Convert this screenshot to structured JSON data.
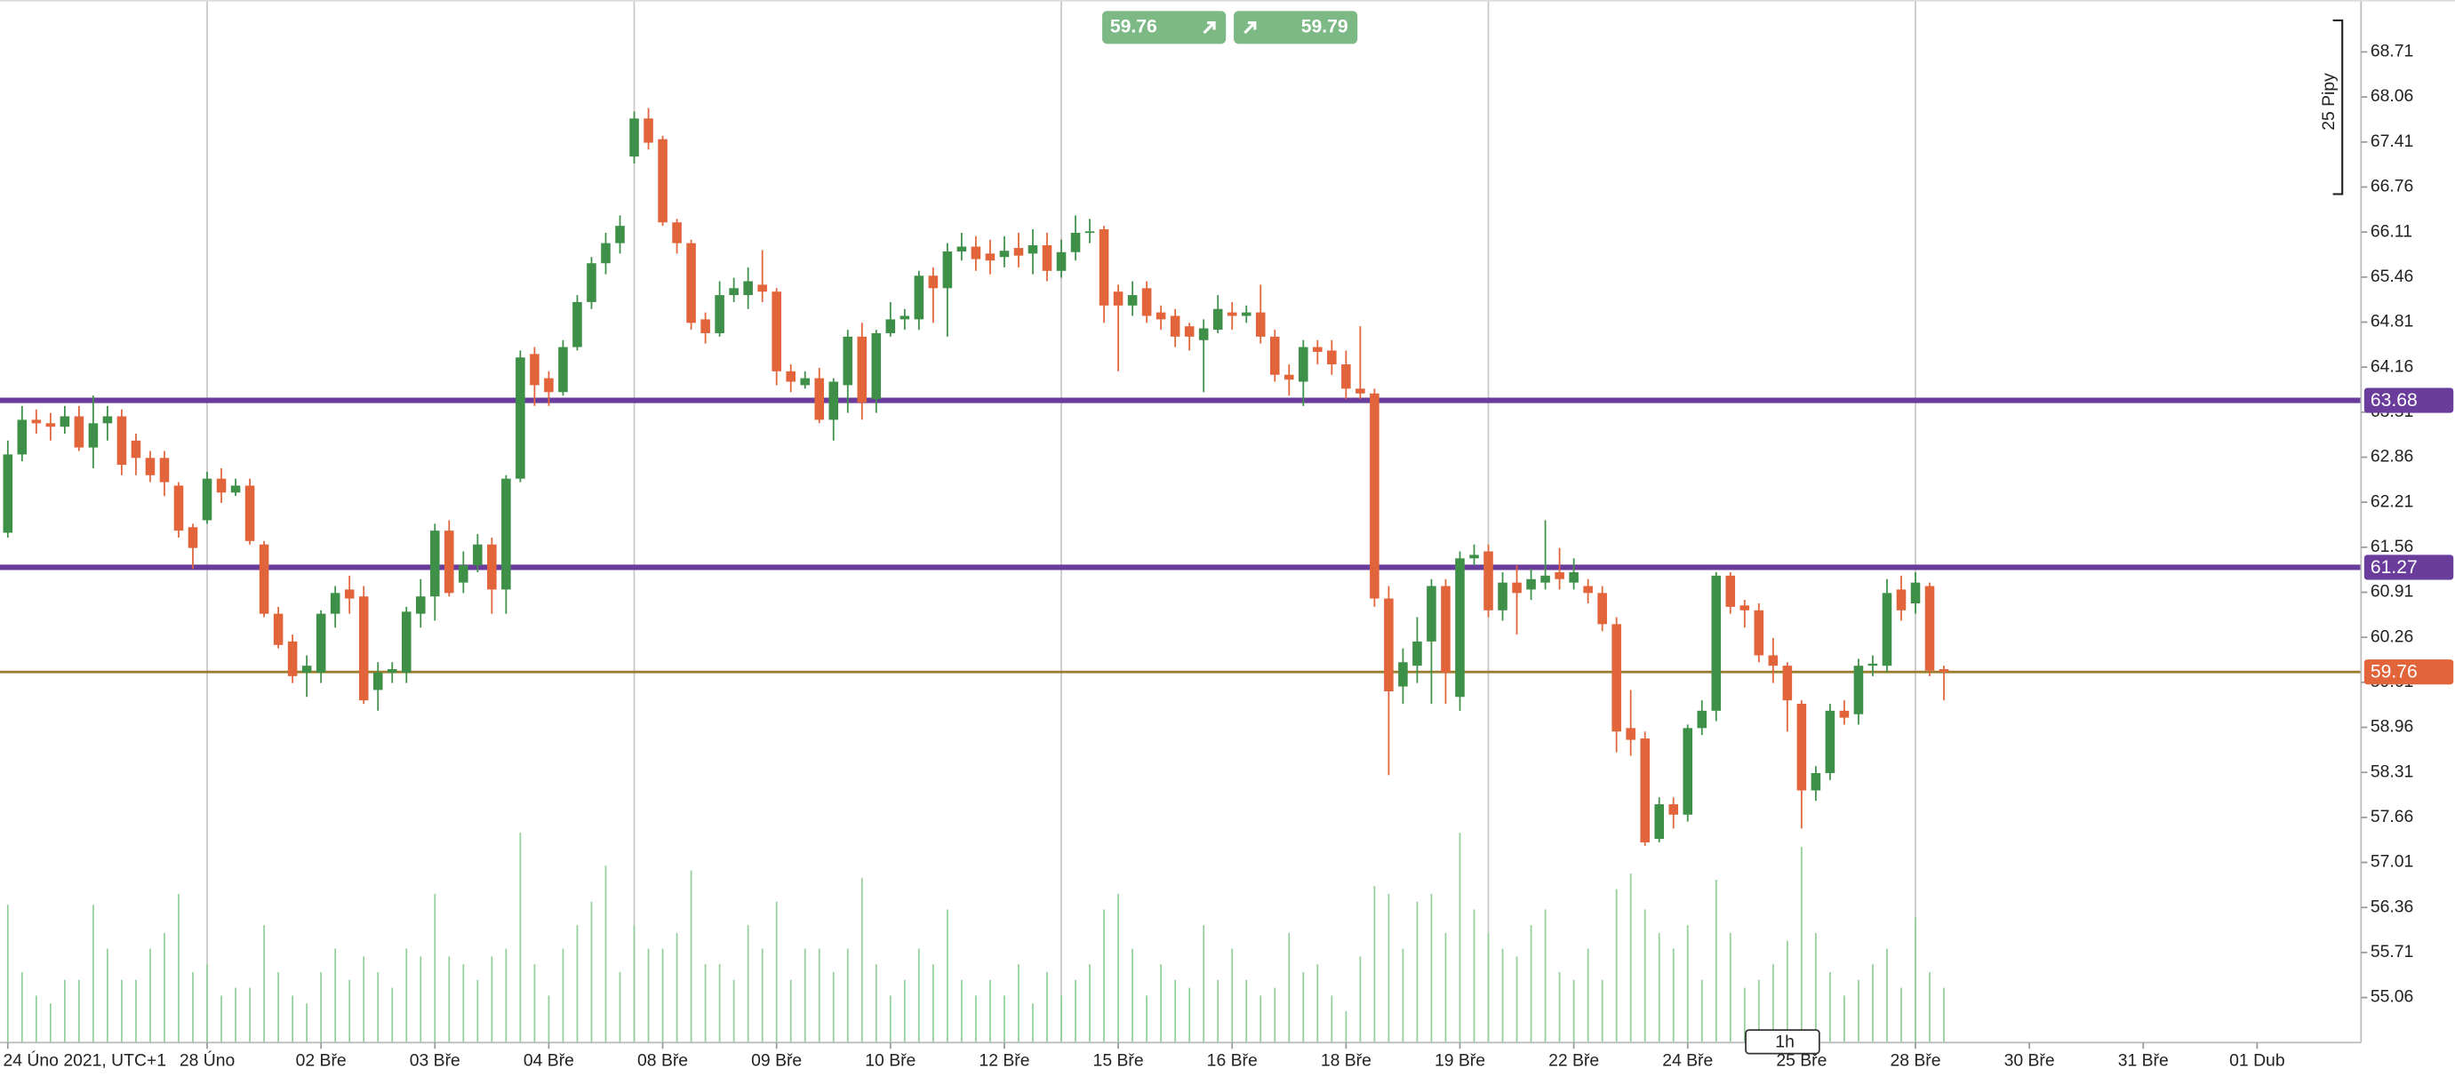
{
  "chart_data": {
    "type": "candlestick",
    "candle_fields": [
      "open",
      "high",
      "low",
      "close"
    ],
    "up_color": "#3e9049",
    "down_color": "#e2643a",
    "volume_color": "#93cf9c",
    "xlim": [
      -0.55,
      165.3
    ],
    "ylim": [
      54.41,
      69.46
    ],
    "yticks": [
      55.06,
      55.71,
      56.36,
      57.01,
      57.66,
      58.31,
      58.96,
      59.61,
      60.26,
      60.91,
      61.56,
      62.21,
      62.86,
      63.51,
      64.16,
      64.81,
      65.46,
      66.11,
      66.76,
      67.41,
      68.06,
      68.71
    ],
    "xticks": [
      {
        "value": 0,
        "label": "24 Úno 2021, UTC+1"
      },
      {
        "value": 14,
        "label": "28 Úno"
      },
      {
        "value": 22,
        "label": "02 Bře"
      },
      {
        "value": 30,
        "label": "03 Bře"
      },
      {
        "value": 38,
        "label": "04 Bře"
      },
      {
        "value": 46,
        "label": "08 Bře"
      },
      {
        "value": 54,
        "label": "09 Bře"
      },
      {
        "value": 62,
        "label": "10 Bře"
      },
      {
        "value": 70,
        "label": "12 Bře"
      },
      {
        "value": 78,
        "label": "15 Bře"
      },
      {
        "value": 86,
        "label": "16 Bře"
      },
      {
        "value": 94,
        "label": "18 Bře"
      },
      {
        "value": 102,
        "label": "19 Bře"
      },
      {
        "value": 110,
        "label": "22 Bře"
      },
      {
        "value": 118,
        "label": "24 Bře"
      },
      {
        "value": 126,
        "label": "25 Bře"
      },
      {
        "value": 134,
        "label": "28 Bře"
      },
      {
        "value": 142,
        "label": "30 Bře"
      },
      {
        "value": 150,
        "label": "31 Bře"
      },
      {
        "value": 158,
        "label": "01 Dub"
      }
    ],
    "xgrid": [
      14,
      44,
      74,
      104,
      134
    ],
    "levels": [
      {
        "value": 63.68,
        "color": "#6a3c9c"
      },
      {
        "value": 61.27,
        "color": "#6a3c9c"
      },
      {
        "value": 59.76,
        "color": "#e2643a",
        "line_color": "#9a7d2e"
      }
    ],
    "trade_buttons": {
      "sell": 59.76,
      "buy": 59.79,
      "color": "#7db985"
    },
    "pip_scale": "25 Pipy",
    "timeframe": "1h",
    "candles": [
      [
        61.77,
        63.1,
        61.7,
        62.9
      ],
      [
        62.9,
        63.6,
        62.8,
        63.4
      ],
      [
        63.4,
        63.55,
        63.2,
        63.35
      ],
      [
        63.35,
        63.5,
        63.1,
        63.3
      ],
      [
        63.3,
        63.6,
        63.2,
        63.45
      ],
      [
        63.45,
        63.6,
        62.95,
        63.0
      ],
      [
        63.0,
        63.75,
        62.7,
        63.35
      ],
      [
        63.35,
        63.6,
        63.1,
        63.45
      ],
      [
        63.45,
        63.55,
        62.6,
        62.75
      ],
      [
        63.1,
        63.2,
        62.6,
        62.85
      ],
      [
        62.85,
        62.95,
        62.5,
        62.6
      ],
      [
        62.85,
        62.95,
        62.3,
        62.5
      ],
      [
        62.45,
        62.5,
        61.7,
        61.8
      ],
      [
        61.85,
        61.9,
        61.25,
        61.55
      ],
      [
        61.95,
        62.65,
        61.9,
        62.55
      ],
      [
        62.55,
        62.7,
        62.2,
        62.35
      ],
      [
        62.35,
        62.55,
        62.3,
        62.45
      ],
      [
        62.45,
        62.55,
        61.6,
        61.65
      ],
      [
        61.6,
        61.65,
        60.55,
        60.6
      ],
      [
        60.6,
        60.7,
        60.1,
        60.15
      ],
      [
        60.2,
        60.3,
        59.6,
        59.7
      ],
      [
        59.75,
        60.0,
        59.4,
        59.85
      ],
      [
        59.75,
        60.65,
        59.6,
        60.6
      ],
      [
        60.6,
        61.0,
        60.4,
        60.9
      ],
      [
        60.95,
        61.15,
        60.6,
        60.82
      ],
      [
        60.85,
        61.0,
        59.3,
        59.35
      ],
      [
        59.5,
        59.9,
        59.2,
        59.75
      ],
      [
        59.75,
        59.9,
        59.6,
        59.8
      ],
      [
        59.75,
        60.7,
        59.6,
        60.63
      ],
      [
        60.6,
        61.1,
        60.4,
        60.85
      ],
      [
        60.85,
        61.9,
        60.5,
        61.8
      ],
      [
        61.8,
        61.95,
        60.85,
        60.9
      ],
      [
        61.05,
        61.5,
        60.9,
        61.3
      ],
      [
        61.3,
        61.75,
        61.2,
        61.6
      ],
      [
        61.6,
        61.7,
        60.6,
        60.95
      ],
      [
        60.95,
        62.6,
        60.6,
        62.55
      ],
      [
        62.55,
        64.4,
        62.5,
        64.3
      ],
      [
        64.35,
        64.45,
        63.6,
        63.9
      ],
      [
        64.0,
        64.1,
        63.6,
        63.8
      ],
      [
        63.8,
        64.55,
        63.75,
        64.45
      ],
      [
        64.45,
        65.2,
        64.4,
        65.1
      ],
      [
        65.1,
        65.75,
        65.0,
        65.66
      ],
      [
        65.66,
        66.1,
        65.5,
        65.95
      ],
      [
        65.95,
        66.35,
        65.8,
        66.2
      ],
      [
        67.2,
        67.85,
        67.1,
        67.75
      ],
      [
        67.75,
        67.9,
        67.3,
        67.4
      ],
      [
        67.45,
        67.5,
        66.2,
        66.25
      ],
      [
        66.25,
        66.3,
        65.8,
        65.95
      ],
      [
        65.95,
        66.0,
        64.7,
        64.8
      ],
      [
        64.85,
        64.95,
        64.5,
        64.65
      ],
      [
        64.65,
        65.4,
        64.6,
        65.2
      ],
      [
        65.2,
        65.45,
        65.1,
        65.3
      ],
      [
        65.2,
        65.6,
        65.0,
        65.4
      ],
      [
        65.35,
        65.85,
        65.1,
        65.25
      ],
      [
        65.25,
        65.3,
        63.9,
        64.1
      ],
      [
        64.1,
        64.2,
        63.8,
        63.95
      ],
      [
        63.9,
        64.1,
        63.85,
        64.0
      ],
      [
        64.0,
        64.15,
        63.35,
        63.4
      ],
      [
        63.4,
        64.0,
        63.1,
        63.95
      ],
      [
        63.9,
        64.7,
        63.5,
        64.6
      ],
      [
        64.6,
        64.8,
        63.4,
        63.65
      ],
      [
        63.7,
        64.7,
        63.5,
        64.65
      ],
      [
        64.65,
        65.1,
        64.6,
        64.85
      ],
      [
        64.85,
        65.0,
        64.7,
        64.9
      ],
      [
        64.85,
        65.55,
        64.7,
        65.48
      ],
      [
        65.48,
        65.6,
        64.8,
        65.3
      ],
      [
        65.3,
        65.95,
        64.6,
        65.83
      ],
      [
        65.83,
        66.1,
        65.7,
        65.9
      ],
      [
        65.9,
        66.05,
        65.55,
        65.72
      ],
      [
        65.8,
        66.0,
        65.5,
        65.7
      ],
      [
        65.75,
        66.05,
        65.6,
        65.84
      ],
      [
        65.88,
        66.1,
        65.6,
        65.77
      ],
      [
        65.8,
        66.15,
        65.5,
        65.92
      ],
      [
        65.92,
        66.1,
        65.4,
        65.55
      ],
      [
        65.55,
        66.0,
        65.45,
        65.82
      ],
      [
        65.82,
        66.35,
        65.7,
        66.1
      ],
      [
        66.1,
        66.3,
        65.95,
        66.12
      ],
      [
        66.15,
        66.2,
        64.8,
        65.05
      ],
      [
        65.25,
        65.35,
        64.1,
        65.05
      ],
      [
        65.05,
        65.4,
        64.9,
        65.2
      ],
      [
        65.3,
        65.4,
        64.8,
        64.9
      ],
      [
        64.95,
        65.05,
        64.7,
        64.85
      ],
      [
        64.9,
        65.0,
        64.45,
        64.6
      ],
      [
        64.75,
        64.8,
        64.4,
        64.6
      ],
      [
        64.55,
        64.85,
        63.8,
        64.72
      ],
      [
        64.7,
        65.2,
        64.65,
        65.0
      ],
      [
        64.95,
        65.1,
        64.7,
        64.9
      ],
      [
        64.9,
        65.05,
        64.8,
        64.95
      ],
      [
        64.95,
        65.35,
        64.5,
        64.6
      ],
      [
        64.6,
        64.7,
        63.95,
        64.05
      ],
      [
        64.05,
        64.2,
        63.75,
        63.98
      ],
      [
        63.95,
        64.55,
        63.6,
        64.45
      ],
      [
        64.45,
        64.55,
        64.2,
        64.38
      ],
      [
        64.4,
        64.55,
        64.05,
        64.2
      ],
      [
        64.2,
        64.4,
        63.7,
        63.85
      ],
      [
        63.85,
        64.75,
        63.7,
        63.78
      ],
      [
        63.78,
        63.85,
        60.7,
        60.82
      ],
      [
        60.82,
        61.0,
        58.27,
        59.48
      ],
      [
        59.55,
        60.1,
        59.3,
        59.9
      ],
      [
        59.85,
        60.55,
        59.6,
        60.2
      ],
      [
        60.2,
        61.1,
        59.3,
        61.0
      ],
      [
        61.0,
        61.1,
        59.3,
        59.75
      ],
      [
        59.4,
        61.5,
        59.2,
        61.4
      ],
      [
        61.4,
        61.6,
        61.3,
        61.45
      ],
      [
        61.5,
        61.6,
        60.55,
        60.65
      ],
      [
        60.65,
        61.2,
        60.5,
        61.05
      ],
      [
        61.05,
        61.3,
        60.3,
        60.9
      ],
      [
        60.95,
        61.25,
        60.8,
        61.1
      ],
      [
        61.05,
        61.95,
        60.95,
        61.15
      ],
      [
        61.2,
        61.55,
        60.95,
        61.1
      ],
      [
        61.05,
        61.4,
        60.95,
        61.2
      ],
      [
        61.0,
        61.1,
        60.75,
        60.9
      ],
      [
        60.9,
        61.0,
        60.35,
        60.45
      ],
      [
        60.45,
        60.55,
        58.6,
        58.9
      ],
      [
        58.95,
        59.5,
        58.55,
        58.78
      ],
      [
        58.8,
        58.9,
        57.25,
        57.3
      ],
      [
        57.35,
        57.95,
        57.3,
        57.85
      ],
      [
        57.85,
        57.95,
        57.5,
        57.7
      ],
      [
        57.7,
        59.0,
        57.6,
        58.95
      ],
      [
        58.95,
        59.35,
        58.85,
        59.2
      ],
      [
        59.2,
        61.2,
        59.05,
        61.15
      ],
      [
        61.15,
        61.2,
        60.6,
        60.7
      ],
      [
        60.72,
        60.8,
        60.4,
        60.65
      ],
      [
        60.65,
        60.75,
        59.9,
        60.0
      ],
      [
        60.0,
        60.25,
        59.6,
        59.85
      ],
      [
        59.85,
        59.9,
        58.9,
        59.35
      ],
      [
        59.3,
        59.35,
        57.5,
        58.05
      ],
      [
        58.05,
        58.4,
        57.9,
        58.3
      ],
      [
        58.3,
        59.3,
        58.2,
        59.2
      ],
      [
        59.2,
        59.35,
        59.0,
        59.1
      ],
      [
        59.15,
        59.95,
        59.0,
        59.85
      ],
      [
        59.85,
        60.0,
        59.7,
        59.88
      ],
      [
        59.85,
        61.1,
        59.75,
        60.9
      ],
      [
        60.95,
        61.15,
        60.5,
        60.65
      ],
      [
        60.75,
        61.2,
        60.6,
        61.05
      ],
      [
        61.0,
        61.05,
        59.7,
        59.78
      ],
      [
        59.8,
        59.85,
        59.35,
        59.76
      ]
    ],
    "volumes": [
      88,
      45,
      30,
      25,
      40,
      40,
      88,
      60,
      40,
      40,
      60,
      70,
      95,
      45,
      50,
      30,
      35,
      35,
      75,
      45,
      30,
      25,
      45,
      60,
      40,
      55,
      45,
      35,
      60,
      55,
      95,
      55,
      50,
      40,
      55,
      60,
      134,
      50,
      30,
      60,
      75,
      90,
      113,
      45,
      75,
      60,
      60,
      70,
      110,
      50,
      50,
      40,
      75,
      60,
      90,
      40,
      60,
      60,
      45,
      60,
      105,
      50,
      30,
      40,
      60,
      50,
      85,
      40,
      30,
      40,
      30,
      50,
      25,
      45,
      30,
      40,
      50,
      85,
      95,
      60,
      30,
      50,
      40,
      35,
      75,
      40,
      60,
      40,
      30,
      35,
      70,
      45,
      50,
      30,
      20,
      55,
      100,
      95,
      60,
      90,
      95,
      70,
      134,
      85,
      70,
      60,
      55,
      75,
      85,
      45,
      40,
      60,
      40,
      98,
      108,
      85,
      70,
      60,
      75,
      40,
      104,
      70,
      35,
      40,
      50,
      65,
      125,
      70,
      45,
      30,
      40,
      50,
      60,
      35,
      80,
      45,
      35
    ]
  }
}
